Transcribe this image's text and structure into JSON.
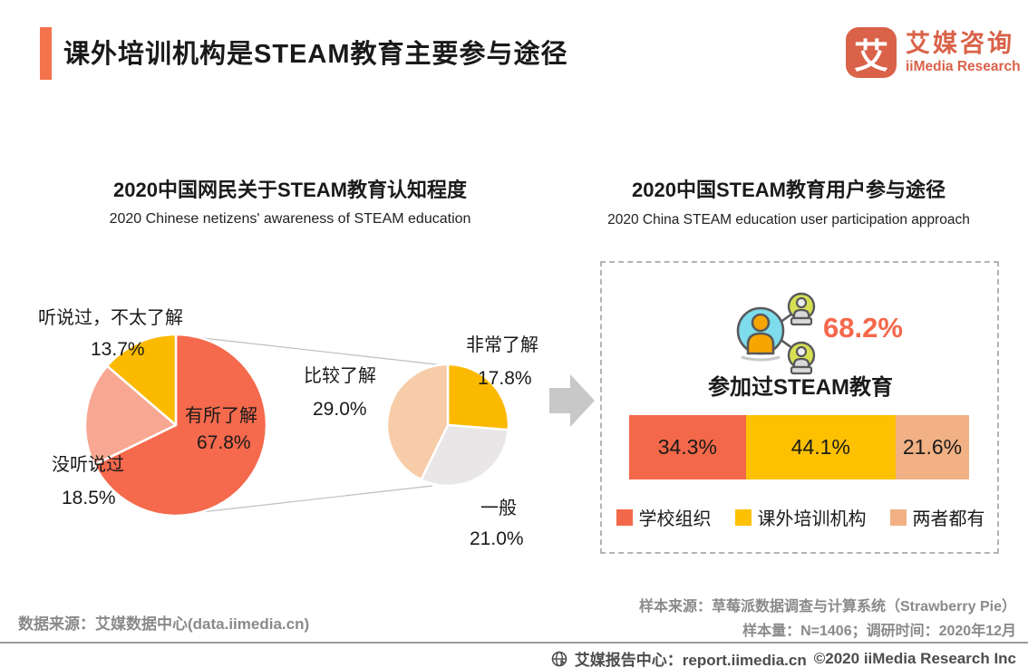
{
  "header": {
    "title": "课外培训机构是STEAM教育主要参与途径",
    "logo_mark": "艾",
    "logo_cn": "艾媒咨询",
    "logo_en": "iiMedia Research"
  },
  "left_chart": {
    "title": "2020中国网民关于STEAM教育认知程度",
    "subtitle": "2020 Chinese netizens' awareness of STEAM education"
  },
  "right_chart": {
    "title": "2020中国STEAM教育用户参与途径",
    "subtitle": "2020 China STEAM education user participation approach",
    "stat_value": "68.2%",
    "stat_label": "参加过STEAM教育"
  },
  "pie_labels": {
    "heard_little": "听说过，不太了解",
    "heard_little_pct": "13.7%",
    "somewhat": "有所了解",
    "somewhat_pct": "67.8%",
    "never": "没听说过",
    "never_pct": "18.5%",
    "very": "非常了解",
    "very_pct": "17.8%",
    "fairly": "比较了解",
    "fairly_pct": "29.0%",
    "average": "一般",
    "average_pct": "21.0%"
  },
  "chart_data": [
    {
      "type": "pie",
      "variant": "pie-of-pie",
      "title": "2020中国网民关于STEAM教育认知程度",
      "subtitle": "2020 Chinese netizens' awareness of STEAM education",
      "main_slices": [
        {
          "label": "有所了解",
          "value": 67.8,
          "color": "#F5694C"
        },
        {
          "label": "没听说过",
          "value": 18.5,
          "color": "#F8A892"
        },
        {
          "label": "听说过，不太了解",
          "value": 13.7,
          "color": "#FBB900"
        }
      ],
      "breakout_of": "有所了解",
      "breakout_slices": [
        {
          "label": "非常了解",
          "value": 17.8,
          "color": "#FBB900"
        },
        {
          "label": "一般",
          "value": 21.0,
          "color": "#E8E6E6"
        },
        {
          "label": "比较了解",
          "value": 29.0,
          "color": "#F7CCA8"
        }
      ],
      "start_angle_deg": 0,
      "direction": "clockwise"
    },
    {
      "type": "bar",
      "variant": "stacked-horizontal",
      "title": "2020中国STEAM教育用户参与途径",
      "subtitle": "2020 China STEAM education user participation approach",
      "stat": {
        "value": "68.2%",
        "label": "参加过STEAM教育"
      },
      "series": [
        {
          "name": "学校组织",
          "value": 34.3,
          "color": "#F4684A"
        },
        {
          "name": "课外培训机构",
          "value": 44.1,
          "color": "#FDC101"
        },
        {
          "name": "两者都有",
          "value": 21.6,
          "color": "#F1B185"
        }
      ],
      "xlim": [
        0,
        100
      ],
      "legend_position": "bottom"
    }
  ],
  "footer": {
    "data_source": "数据来源：艾媒数据中心(data.iimedia.cn)",
    "sample_source": "样本来源：草莓派数据调查与计算系统（Strawberry Pie）",
    "sample_info": "样本量：N=1406；调研时间：2020年12月",
    "report_line": "艾媒报告中心：report.iimedia.cn",
    "copyright": "©2020  iiMedia Research Inc"
  },
  "colors": {
    "accent": "#F4734D",
    "stat": "#F4684B",
    "arrow": "#C8C8C8",
    "dashed_border": "#b3b3b3",
    "logo": "#D96249"
  }
}
